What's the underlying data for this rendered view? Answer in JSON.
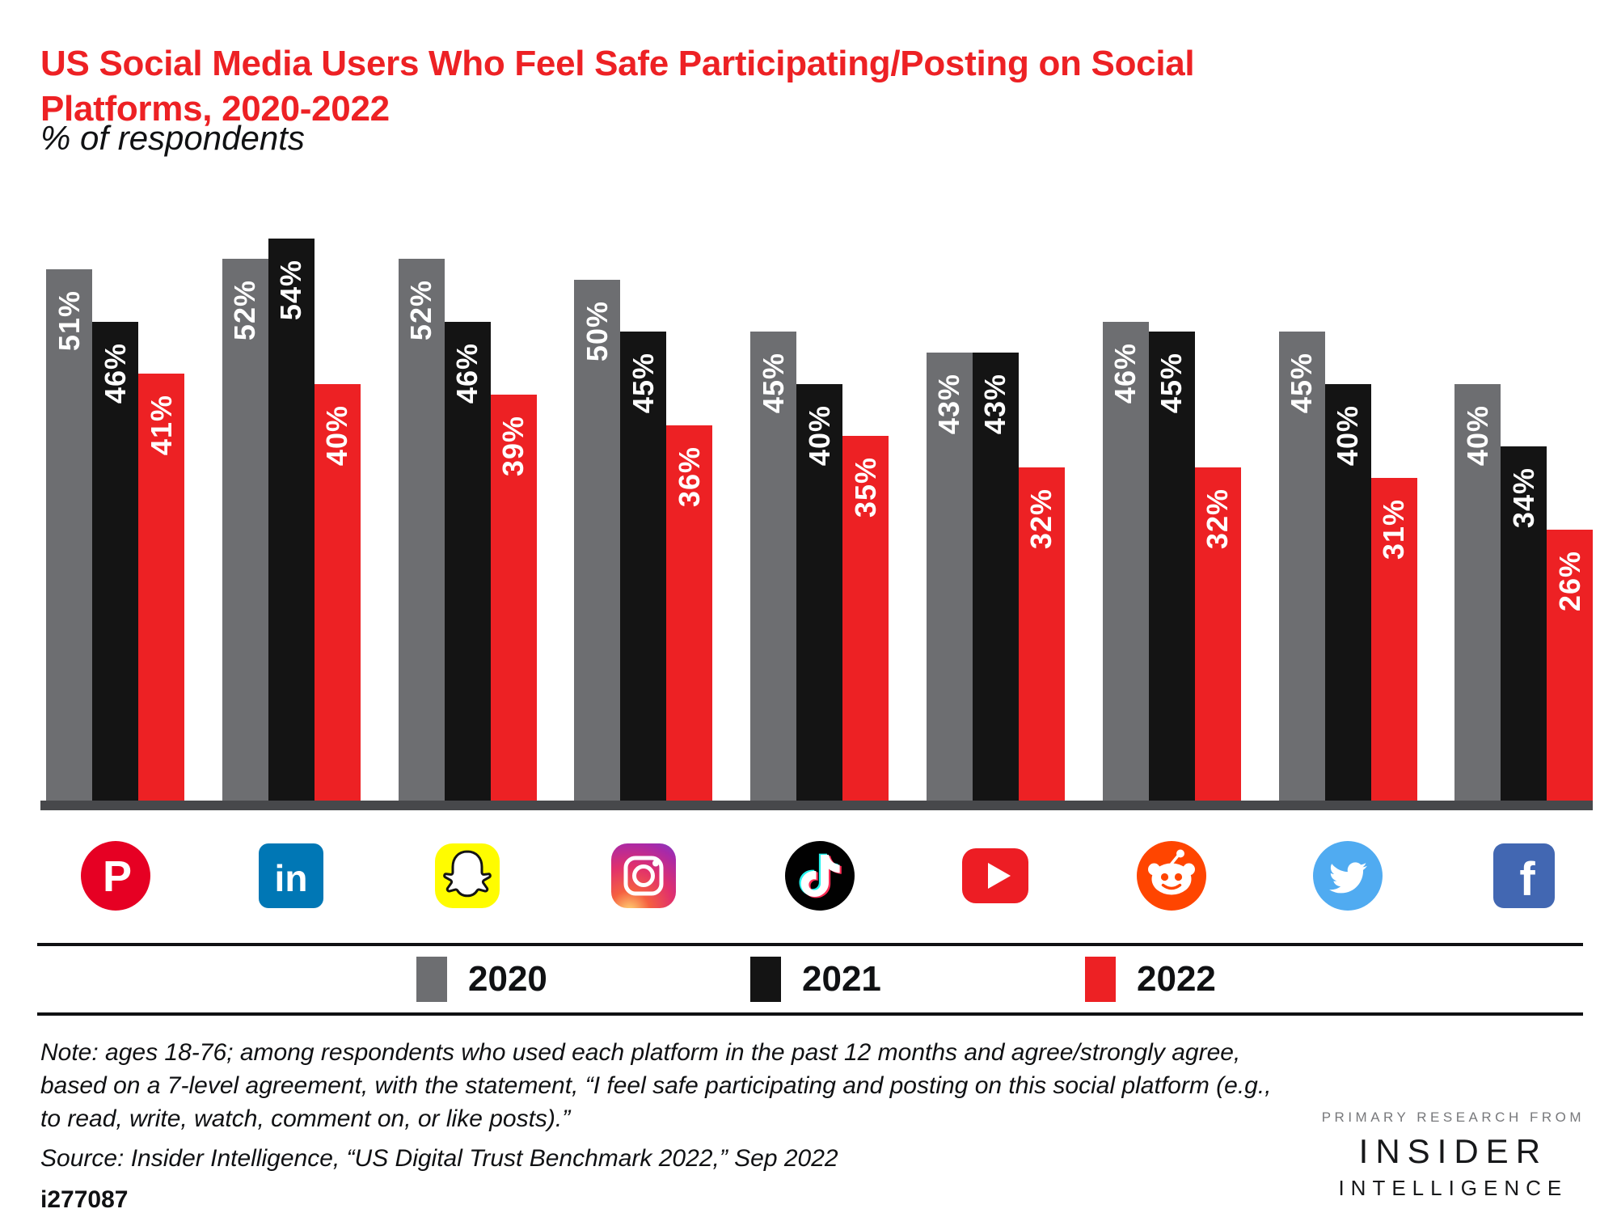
{
  "header": {
    "title": "US Social Media Users Who Feel Safe Participating/Posting on Social Platforms, 2020-2022",
    "subtitle": "% of respondents"
  },
  "chart_data": {
    "type": "bar",
    "title": "US Social Media Users Who Feel Safe Participating/Posting on Social Platforms, 2020-2022",
    "subtitle": "% of respondents",
    "categories": [
      "Pinterest",
      "LinkedIn",
      "Snapchat",
      "Instagram",
      "TikTok",
      "YouTube",
      "Reddit",
      "Twitter",
      "Facebook"
    ],
    "series": [
      {
        "name": "2020",
        "color": "#6D6E71",
        "values": [
          51,
          52,
          52,
          50,
          45,
          43,
          46,
          45,
          40
        ]
      },
      {
        "name": "2021",
        "color": "#141414",
        "values": [
          46,
          54,
          46,
          45,
          40,
          43,
          45,
          40,
          34
        ]
      },
      {
        "name": "2022",
        "color": "#ED2124",
        "values": [
          41,
          40,
          39,
          36,
          35,
          32,
          32,
          31,
          26
        ]
      }
    ],
    "value_suffix": "%",
    "ylim": [
      0,
      60
    ],
    "grid": false,
    "y_axis_shown": false,
    "legend_position": "bottom",
    "bar_label_color": "#ffffff",
    "axis_color": "#47484B"
  },
  "platforms": [
    {
      "name": "Pinterest",
      "icon": "pinterest-icon",
      "color": "#E60023"
    },
    {
      "name": "LinkedIn",
      "icon": "linkedin-icon",
      "color": "#0077B5"
    },
    {
      "name": "Snapchat",
      "icon": "snapchat-icon",
      "color": "#FFFC00"
    },
    {
      "name": "Instagram",
      "icon": "instagram-icon",
      "color": "gradient"
    },
    {
      "name": "TikTok",
      "icon": "tiktok-icon",
      "color": "#010101"
    },
    {
      "name": "YouTube",
      "icon": "youtube-icon",
      "color": "#ED1D24"
    },
    {
      "name": "Reddit",
      "icon": "reddit-icon",
      "color": "#FF4500"
    },
    {
      "name": "Twitter",
      "icon": "twitter-icon",
      "color": "#50ABF1"
    },
    {
      "name": "Facebook",
      "icon": "facebook-icon",
      "color": "#4267B2"
    }
  ],
  "legend": {
    "items": [
      {
        "label": "2020",
        "color": "#6D6E71"
      },
      {
        "label": "2021",
        "color": "#141414"
      },
      {
        "label": "2022",
        "color": "#ED2124"
      }
    ]
  },
  "footer": {
    "note": "Note: ages 18-76; among respondents who used each platform in the past 12 months and agree/strongly agree, based on a 7-level agreement, with the statement, “I feel safe participating and posting on this social platform (e.g., to read, write, watch, comment on, or like posts).”",
    "source": "Source: Insider Intelligence, “US Digital Trust Benchmark 2022,” Sep 2022",
    "chart_id": "i277087"
  },
  "branding": {
    "tagline": "PRIMARY RESEARCH FROM",
    "line1": "INSIDER",
    "line2": "INTELLIGENCE"
  },
  "theme": {
    "accent_red": "#ED2124",
    "gray_bar": "#6D6E71",
    "black_bar": "#141414",
    "axis": "#47484B",
    "background": "#FFFFFF"
  }
}
